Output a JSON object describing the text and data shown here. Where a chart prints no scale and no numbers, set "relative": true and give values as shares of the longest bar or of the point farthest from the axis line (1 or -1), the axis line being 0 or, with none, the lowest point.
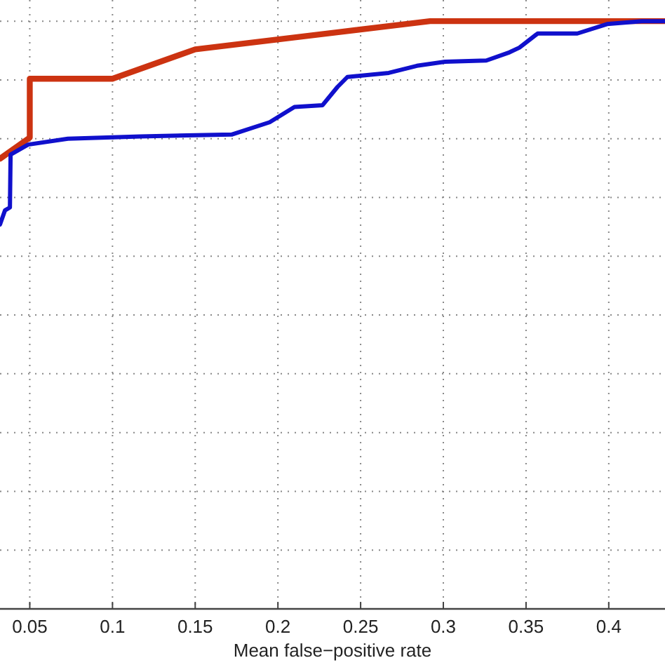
{
  "chart_data": {
    "type": "line",
    "xlabel": "Mean false−positive rate",
    "relative": true,
    "xlim": [
      0.032,
      0.434
    ],
    "xticks": [
      0.05,
      0.1,
      0.15,
      0.2,
      0.25,
      0.3,
      0.35,
      0.4
    ],
    "grid": true,
    "line_style": "solid",
    "marker": "none",
    "series": [
      {
        "color": "#cc3311",
        "x": [
          0.032,
          0.05,
          0.05,
          0.1,
          0.15,
          0.2356,
          0.292,
          0.434
        ],
        "values": [
          0.766,
          0.802,
          0.902,
          0.902,
          0.952,
          0.981,
          1.0,
          1.0
        ]
      },
      {
        "color": "#1010cc",
        "x": [
          0.032,
          0.035,
          0.038,
          0.0384,
          0.049,
          0.073,
          0.117,
          0.172,
          0.195,
          0.21,
          0.227,
          0.236,
          0.242,
          0.267,
          0.284,
          0.301,
          0.326,
          0.34,
          0.346,
          0.357,
          0.381,
          0.399,
          0.42,
          0.434
        ],
        "values": [
          0.654,
          0.678,
          0.683,
          0.773,
          0.79,
          0.8,
          0.804,
          0.807,
          0.828,
          0.854,
          0.857,
          0.888,
          0.905,
          0.912,
          0.924,
          0.931,
          0.933,
          0.947,
          0.955,
          0.979,
          0.979,
          0.995,
          1.0,
          1.0
        ]
      }
    ]
  }
}
